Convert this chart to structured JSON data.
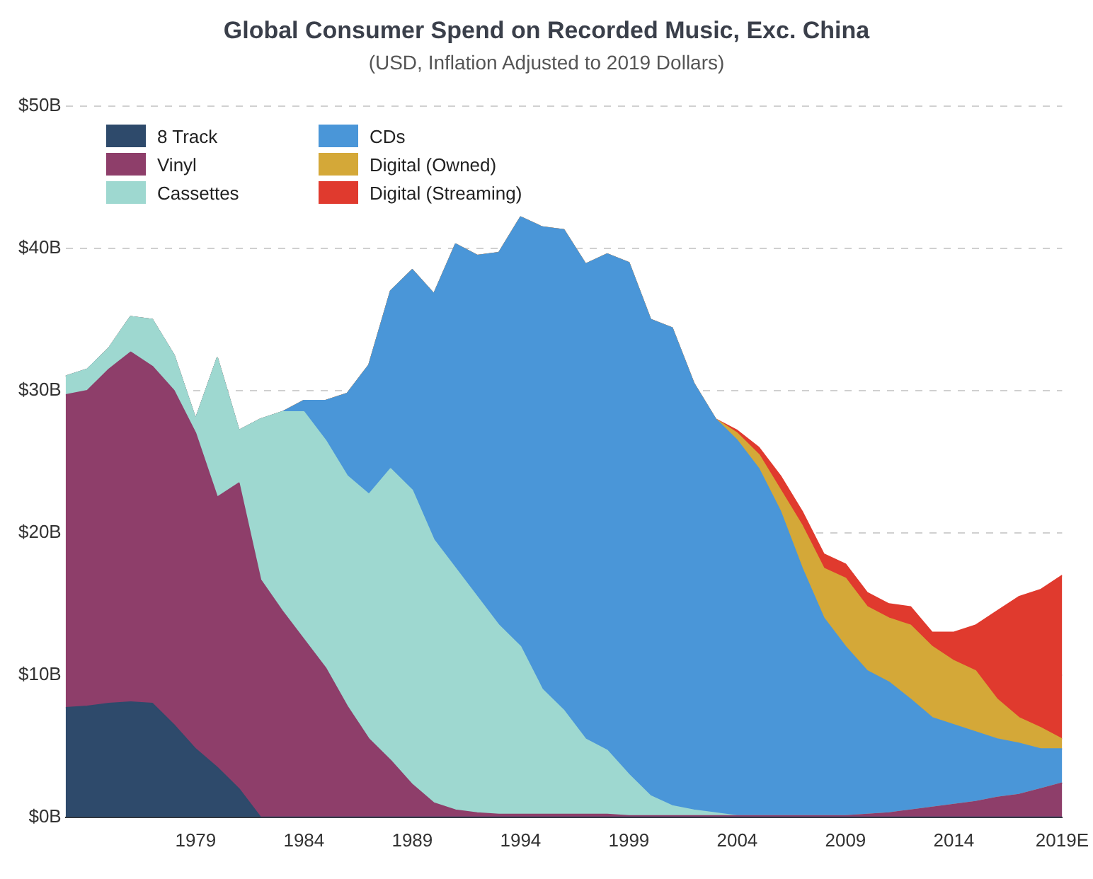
{
  "chart_data": {
    "type": "area",
    "stacked": true,
    "title": "Global Consumer Spend on Recorded Music, Exc. China",
    "subtitle": "(USD, Inflation Adjusted to 2019 Dollars)",
    "x": [
      1973,
      1974,
      1975,
      1976,
      1977,
      1978,
      1979,
      1980,
      1981,
      1982,
      1983,
      1984,
      1985,
      1986,
      1987,
      1988,
      1989,
      1990,
      1991,
      1992,
      1993,
      1994,
      1995,
      1996,
      1997,
      1998,
      1999,
      2000,
      2001,
      2002,
      2003,
      2004,
      2005,
      2006,
      2007,
      2008,
      2009,
      2010,
      2011,
      2012,
      2013,
      2014,
      2015,
      2016,
      2017,
      2018,
      2019
    ],
    "xlim": [
      1973,
      2019
    ],
    "xticks": [
      1979,
      1984,
      1989,
      1994,
      1999,
      2004,
      2009,
      2014,
      {
        "value": 2019,
        "label": "2019E"
      }
    ],
    "ylim": [
      0,
      50
    ],
    "yticks": [
      {
        "value": 0,
        "label": "$0B"
      },
      {
        "value": 10,
        "label": "$10B"
      },
      {
        "value": 20,
        "label": "$20B"
      },
      {
        "value": 30,
        "label": "$30B"
      },
      {
        "value": 40,
        "label": "$40B"
      },
      {
        "value": 50,
        "label": "$50B"
      }
    ],
    "grid": "y",
    "legend": "top left",
    "series": [
      {
        "name": "8 Track",
        "color": "#2e4a6b",
        "values": [
          7.7,
          7.8,
          8.0,
          8.1,
          8.0,
          6.5,
          4.8,
          3.5,
          2.0,
          0,
          0,
          0,
          0,
          0,
          0,
          0,
          0,
          0,
          0,
          0,
          0,
          0,
          0,
          0,
          0,
          0,
          0,
          0,
          0,
          0,
          0,
          0,
          0,
          0,
          0,
          0,
          0,
          0,
          0,
          0,
          0,
          0,
          0,
          0,
          0,
          0,
          0
        ]
      },
      {
        "name": "Vinyl",
        "color": "#8e3e6a",
        "values": [
          22.0,
          22.2,
          23.5,
          24.6,
          23.7,
          23.5,
          22.2,
          19.0,
          21.5,
          16.7,
          14.5,
          12.5,
          10.5,
          7.8,
          5.5,
          4.0,
          2.3,
          1.0,
          0.5,
          0.3,
          0.2,
          0.2,
          0.2,
          0.2,
          0.2,
          0.2,
          0.1,
          0.1,
          0.1,
          0.1,
          0.1,
          0.1,
          0.1,
          0.1,
          0.1,
          0.1,
          0.1,
          0.2,
          0.3,
          0.5,
          0.7,
          0.9,
          1.1,
          1.4,
          1.6,
          2.0,
          2.4
        ]
      },
      {
        "name": "Cassettes",
        "color": "#9ed8d0",
        "values": [
          1.3,
          1.5,
          1.5,
          2.5,
          3.3,
          2.5,
          1.0,
          9.8,
          3.7,
          11.3,
          14.0,
          16.0,
          16.0,
          16.2,
          17.2,
          20.5,
          20.7,
          18.5,
          17.0,
          15.2,
          13.3,
          11.8,
          8.8,
          7.3,
          5.3,
          4.5,
          2.9,
          1.4,
          0.7,
          0.4,
          0.2,
          0,
          0,
          0,
          0,
          0,
          0,
          0,
          0,
          0,
          0,
          0,
          0,
          0,
          0,
          0,
          0
        ]
      },
      {
        "name": "CDs",
        "color": "#4a96d8",
        "values": [
          0,
          0,
          0,
          0,
          0,
          0,
          0,
          0,
          0,
          0,
          0,
          0.8,
          2.8,
          5.8,
          9.1,
          12.5,
          15.5,
          17.3,
          22.8,
          24.0,
          26.2,
          30.2,
          32.5,
          33.8,
          33.4,
          34.9,
          36.0,
          33.5,
          33.6,
          30.0,
          27.7,
          26.4,
          24.4,
          21.4,
          17.4,
          13.9,
          11.9,
          10.1,
          9.2,
          7.8,
          6.3,
          5.6,
          4.9,
          4.1,
          3.6,
          2.8,
          2.4
        ]
      },
      {
        "name": "Digital (Owned)",
        "color": "#d4a838",
        "values": [
          0,
          0,
          0,
          0,
          0,
          0,
          0,
          0,
          0,
          0,
          0,
          0,
          0,
          0,
          0,
          0,
          0,
          0,
          0,
          0,
          0,
          0,
          0,
          0,
          0,
          0,
          0,
          0,
          0,
          0,
          0,
          0.5,
          1.0,
          1.5,
          3.0,
          3.5,
          4.8,
          4.5,
          4.5,
          5.2,
          5.0,
          4.5,
          4.3,
          2.8,
          1.8,
          1.5,
          0.7
        ]
      },
      {
        "name": "Digital (Streaming)",
        "color": "#e03a2e",
        "values": [
          0,
          0,
          0,
          0,
          0,
          0,
          0,
          0,
          0,
          0,
          0,
          0,
          0,
          0,
          0,
          0,
          0,
          0,
          0,
          0,
          0,
          0,
          0,
          0,
          0,
          0,
          0,
          0,
          0,
          0,
          0,
          0.2,
          0.5,
          1.0,
          1.0,
          1.0,
          1.0,
          1.0,
          1.0,
          1.3,
          1.0,
          2.0,
          3.2,
          6.2,
          8.5,
          9.7,
          11.5
        ]
      }
    ]
  }
}
